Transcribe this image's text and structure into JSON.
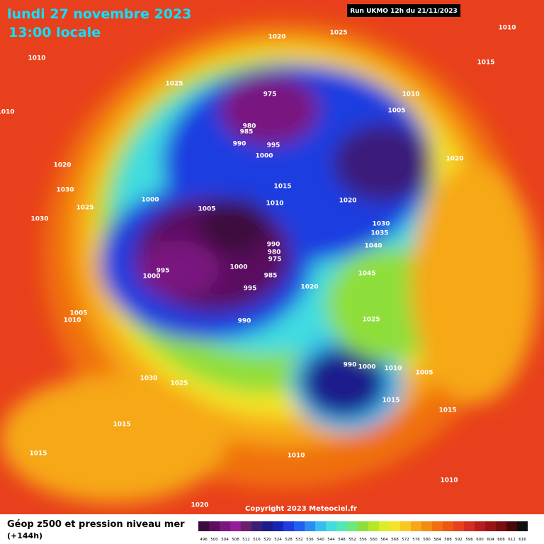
{
  "header": {
    "title": "lundi 27 novembre 2023",
    "subtitle": "13:00 locale",
    "run": "Run UKMO 12h du 21/11/2023"
  },
  "isobar_labels": [
    1020,
    1025,
    1010,
    1010,
    1015,
    1025,
    975,
    1010,
    1010,
    1005,
    980,
    985,
    990,
    995,
    1000,
    1020,
    1020,
    1030,
    1015,
    1000,
    1025,
    1005,
    1010,
    1020,
    1030,
    1030,
    1035,
    990,
    980,
    1040,
    975,
    995,
    1000,
    985,
    1045,
    1000,
    995,
    1020,
    1005,
    1010,
    990,
    1025,
    990,
    1000,
    1010,
    1005,
    1030,
    1025,
    1015,
    1015,
    1015,
    1015,
    1010,
    1010,
    1020
  ],
  "copyright": "Copyright 2023 Meteociel.fr",
  "legend": {
    "title": "Géop z500 et pression niveau mer",
    "lead": "(+144h)",
    "values": [
      496,
      500,
      504,
      508,
      512,
      516,
      520,
      524,
      528,
      532,
      536,
      540,
      544,
      548,
      552,
      556,
      560,
      564,
      568,
      572,
      576,
      580,
      584,
      588,
      592,
      596,
      600,
      604,
      608,
      612,
      616
    ],
    "colors": [
      "#3c0a3c",
      "#5a0f5f",
      "#7a167f",
      "#931c98",
      "#6a1f6f",
      "#3a1f7a",
      "#1c1c8c",
      "#1a24b4",
      "#1f3ce0",
      "#2060f0",
      "#2a8cf4",
      "#36bcf0",
      "#40dce0",
      "#50e8b8",
      "#6ee87a",
      "#8ede3a",
      "#b4e62a",
      "#dcec28",
      "#f4e428",
      "#f8c81e",
      "#f6a818",
      "#f48c14",
      "#f07010",
      "#ec5812",
      "#e8401c",
      "#d42c20",
      "#b81c1c",
      "#9a1414",
      "#7a0e0e",
      "#4a0808",
      "#101010"
    ]
  }
}
